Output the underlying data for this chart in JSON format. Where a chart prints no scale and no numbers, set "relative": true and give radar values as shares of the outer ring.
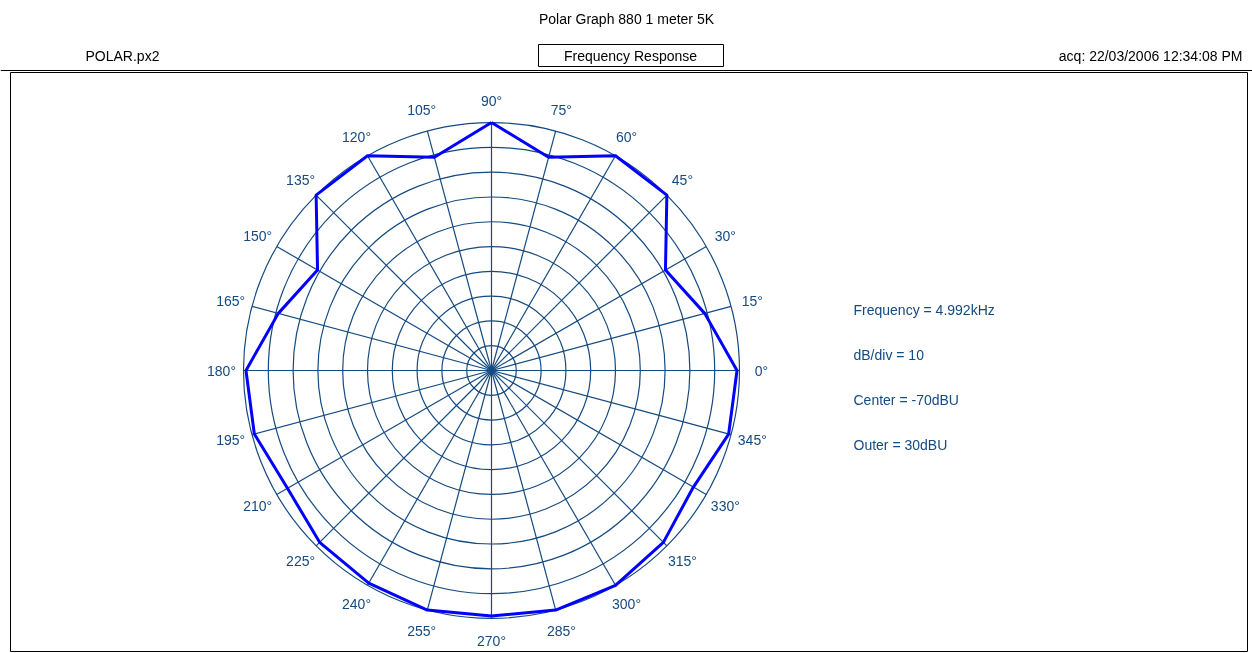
{
  "chart_data": {
    "type": "radar",
    "title": "Polar Graph 880 1 meter 5K",
    "subtitle": "Frequency Response",
    "annotations": [
      "Frequency = 4.992kHz",
      "dB/div = 10",
      "Center = -70dBU",
      "Outer = 30dBU",
      "POLAR.px2",
      "acq: 22/03/2006 12:34:08 PM"
    ],
    "categories": [
      "90°",
      "75°",
      "60°",
      "45°",
      "30°",
      "15°",
      "0°",
      "345°",
      "330°",
      "315°",
      "300°",
      "285°",
      "270°",
      "255°",
      "240°",
      "225°",
      "210°",
      "195°",
      "180°",
      "165°",
      "150°",
      "135°",
      "120°",
      "105°"
    ],
    "series": [
      {
        "color": "#0000ff",
        "values": [
          1.0,
          0.89,
          1.0,
          1.0,
          0.81,
          0.89,
          0.99,
          0.99,
          0.94,
          0.98,
          1.0,
          1.0,
          0.99,
          1.0,
          0.99,
          0.98,
          0.95,
          0.99,
          0.99,
          0.89,
          0.81,
          1.0,
          1.0,
          0.89
        ]
      }
    ],
    "relative": true,
    "grid": true
  }
}
